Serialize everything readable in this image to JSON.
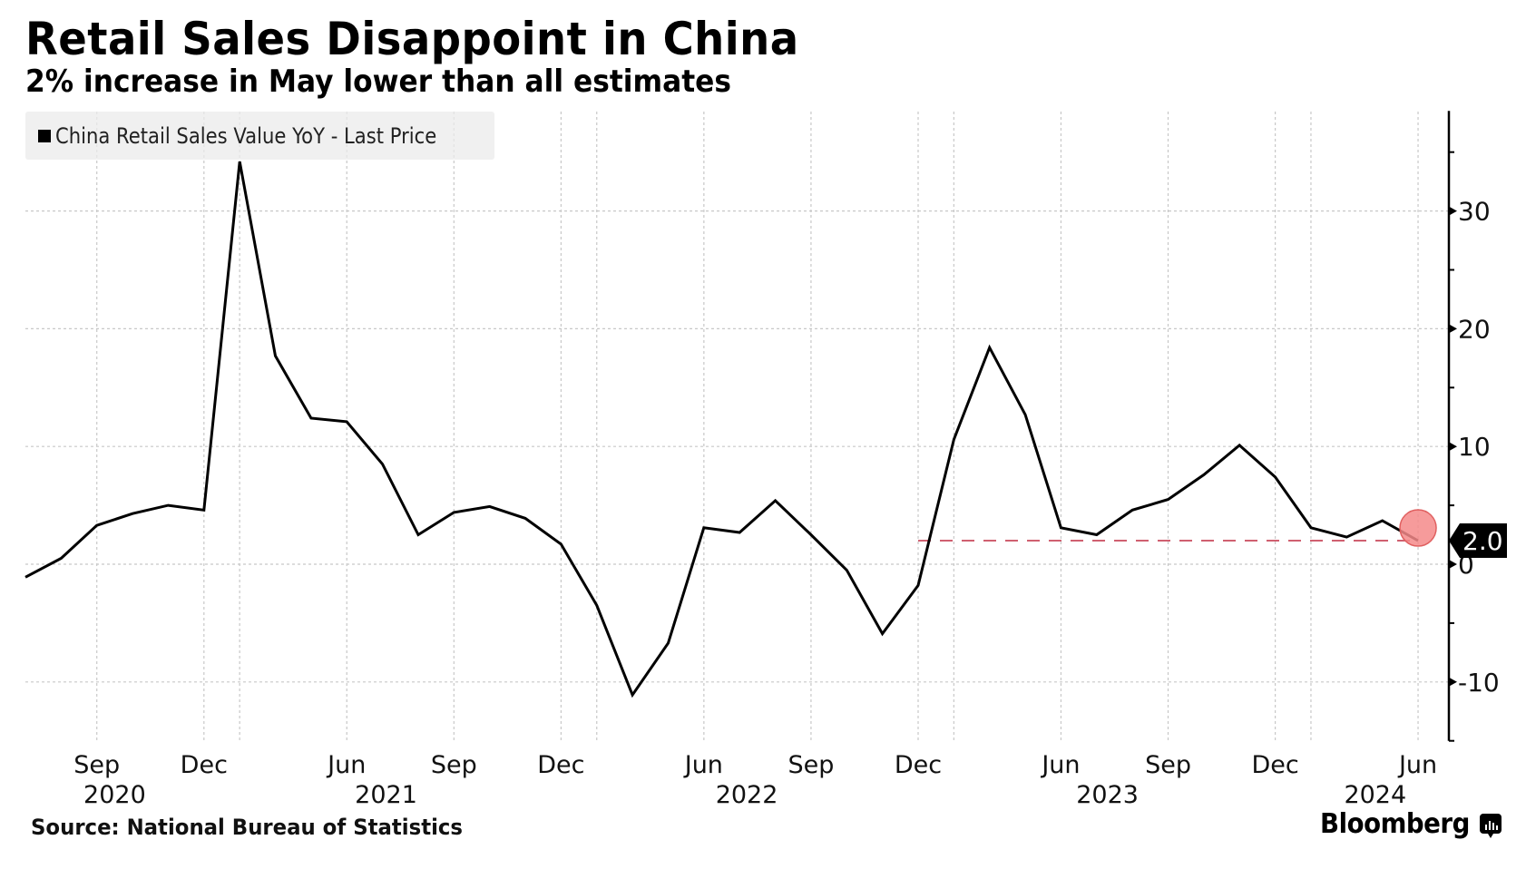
{
  "header": {
    "title": "Retail Sales Disappoint in China",
    "subtitle": "2% increase in May lower than all estimates"
  },
  "footer": {
    "source": "Source: National Bureau of Statistics",
    "brand": "Bloomberg",
    "brand_icon": "bloomberg-chart-icon"
  },
  "colors": {
    "line": "#000000",
    "grid": "#c8c8c8",
    "marker_fill": "#f48a8a",
    "marker_stroke": "#e06060",
    "reference_line": "#d06070",
    "value_label_bg": "#000000",
    "value_label_text": "#ffffff",
    "legend_bg": "#ebebeb"
  },
  "chart_data": {
    "type": "line",
    "title": "Retail Sales Disappoint in China",
    "subtitle": "2% increase in May lower than all estimates",
    "xlabel": "",
    "ylabel": "",
    "y_axis_side": "right",
    "ylim": [
      -15,
      38.5
    ],
    "yticks": [
      -10,
      0,
      10,
      20,
      30
    ],
    "ytick_labels": [
      "-10",
      "0",
      "10",
      "20",
      "30"
    ],
    "y_minor_ticks": [
      -15,
      -5,
      5,
      15,
      25,
      35
    ],
    "grid": true,
    "legend": {
      "position": "top-left",
      "entries": [
        "China Retail Sales Value YoY - Last Price"
      ]
    },
    "x": [
      "2020-07",
      "2020-08",
      "2020-09",
      "2020-10",
      "2020-11",
      "2020-12",
      "2021-03",
      "2021-04",
      "2021-05",
      "2021-06",
      "2021-07",
      "2021-08",
      "2021-09",
      "2021-10",
      "2021-11",
      "2021-12",
      "2022-03",
      "2022-04",
      "2022-05",
      "2022-06",
      "2022-07",
      "2022-08",
      "2022-09",
      "2022-10",
      "2022-11",
      "2022-12",
      "2023-03",
      "2023-04",
      "2023-05",
      "2023-06",
      "2023-07",
      "2023-08",
      "2023-09",
      "2023-10",
      "2023-11",
      "2023-12",
      "2024-03",
      "2024-04",
      "2024-05",
      "2024-06"
    ],
    "series": [
      {
        "name": "China Retail Sales Value YoY - Last Price",
        "values": [
          -1.1,
          0.5,
          3.3,
          4.3,
          5.0,
          4.6,
          34.2,
          17.7,
          12.4,
          12.1,
          8.5,
          2.5,
          4.4,
          4.9,
          3.9,
          1.7,
          -3.5,
          -11.1,
          -6.7,
          3.1,
          2.7,
          5.4,
          2.5,
          -0.5,
          -5.9,
          -1.8,
          10.6,
          18.4,
          12.7,
          3.1,
          2.5,
          4.6,
          5.5,
          7.6,
          10.1,
          7.4,
          3.1,
          2.3,
          3.7,
          2.0
        ]
      }
    ],
    "x_tick_labels": [
      {
        "label": "Sep",
        "x": "2020-09"
      },
      {
        "label": "Dec",
        "x": "2020-12"
      },
      {
        "label": "Jun",
        "x": "2021-06"
      },
      {
        "label": "Sep",
        "x": "2021-09"
      },
      {
        "label": "Dec",
        "x": "2021-12"
      },
      {
        "label": "Jun",
        "x": "2022-06"
      },
      {
        "label": "Sep",
        "x": "2022-09"
      },
      {
        "label": "Dec",
        "x": "2022-12"
      },
      {
        "label": "Jun",
        "x": "2023-06"
      },
      {
        "label": "Sep",
        "x": "2023-09"
      },
      {
        "label": "Dec",
        "x": "2023-12"
      },
      {
        "label": "Jun",
        "x": "2024-06"
      }
    ],
    "year_labels": [
      "2020",
      "2021",
      "2022",
      "2023",
      "2024"
    ],
    "vertical_gridlines_at": [
      "2020-09",
      "2020-12",
      "2021-03",
      "2021-06",
      "2021-09",
      "2021-12",
      "2022-03",
      "2022-06",
      "2022-09",
      "2022-12",
      "2023-03",
      "2023-06",
      "2023-09",
      "2023-12",
      "2024-03",
      "2024-06"
    ],
    "annotations": {
      "last_value_label": "2.0",
      "last_value": 2.0,
      "highlight_point": "2024-06",
      "reference_line": {
        "value": 2.0,
        "from": "2022-12",
        "to": "2024-06",
        "style": "dashed"
      }
    }
  }
}
